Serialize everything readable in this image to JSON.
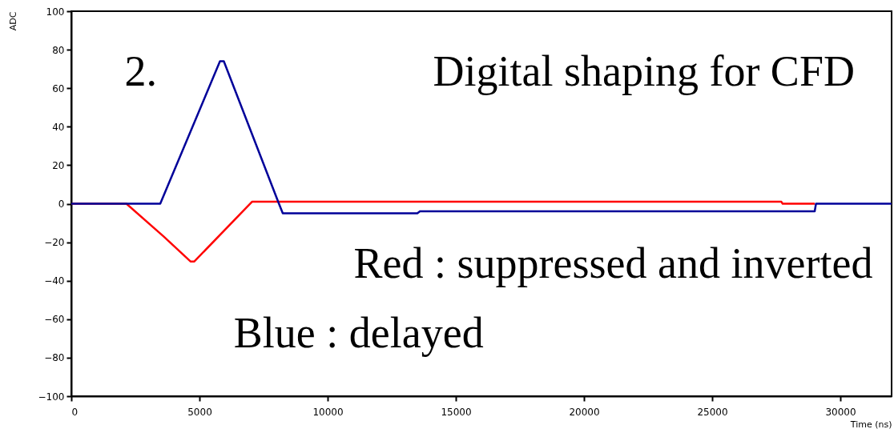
{
  "chart_data": {
    "type": "line",
    "xlabel": "Time (ns)",
    "ylabel": "ADC",
    "annotations": [
      "2.",
      "Digital shaping for CFD",
      "Red : suppressed and inverted",
      "Blue : delayed"
    ],
    "xlim": [
      0,
      32000
    ],
    "xticks": [
      0,
      5000,
      10000,
      15000,
      20000,
      25000,
      30000
    ],
    "ylim": [
      -100,
      100
    ],
    "yticks": [
      -100,
      -80,
      -60,
      -40,
      -20,
      0,
      20,
      40,
      60,
      80,
      100
    ],
    "grid": false,
    "line_style": "solid",
    "marker": "none",
    "series": [
      {
        "color": "#ff0000",
        "x": [
          0,
          2150,
          3600,
          4650,
          4800,
          7050,
          27700,
          27750,
          29000
        ],
        "values": [
          0,
          0,
          -17,
          -30,
          -30,
          1,
          1,
          0,
          0
        ]
      },
      {
        "color": "#000099",
        "x": [
          0,
          3470,
          5800,
          5950,
          8100,
          8250,
          13500,
          13600,
          29000,
          29050,
          32000
        ],
        "values": [
          0,
          0,
          74,
          74,
          0,
          -5,
          -5,
          -4,
          -4,
          0,
          0
        ]
      }
    ]
  }
}
